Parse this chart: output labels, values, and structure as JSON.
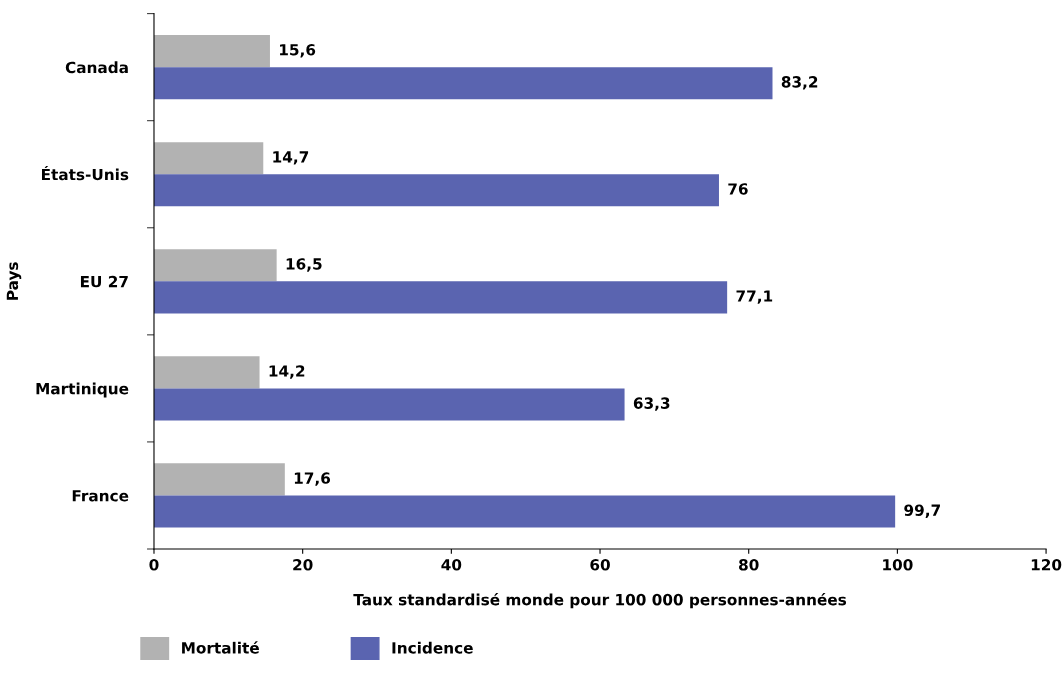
{
  "chart_data": {
    "type": "bar",
    "orientation": "horizontal",
    "xlabel": "Taux standardisé monde pour 100 000 personnes-années",
    "ylabel": "Pays",
    "categories": [
      "Canada",
      "États-Unis",
      "EU 27",
      "Martinique",
      "France"
    ],
    "series": [
      {
        "name": "Mortalité",
        "color": "#b2b2b2",
        "values": [
          15.6,
          14.7,
          16.5,
          14.2,
          17.6
        ],
        "value_labels": [
          "15,6",
          "14,7",
          "16,5",
          "14,2",
          "17,6"
        ]
      },
      {
        "name": "Incidence",
        "color": "#5a64b0",
        "values": [
          83.2,
          76,
          77.1,
          63.3,
          99.7
        ],
        "value_labels": [
          "83,2",
          "76",
          "77,1",
          "63,3",
          "99,7"
        ]
      }
    ],
    "xlim": [
      0,
      120
    ],
    "xticks": [
      0,
      20,
      40,
      60,
      80,
      100,
      120
    ],
    "grid": false,
    "legend": "bottom"
  }
}
